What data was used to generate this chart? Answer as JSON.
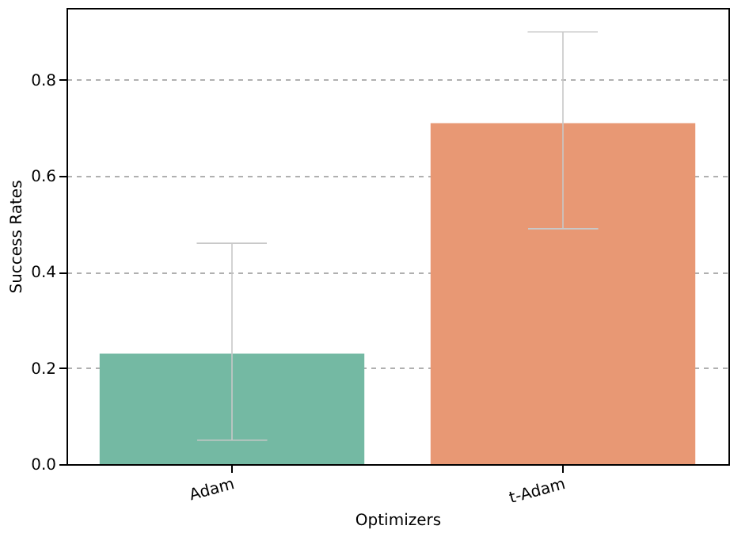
{
  "chart_data": {
    "type": "bar",
    "xlabel": "Optimizers",
    "ylabel": "Success Rates",
    "categories": [
      "Adam",
      "t-Adam"
    ],
    "values": [
      0.23,
      0.71
    ],
    "colors": [
      "#74b9a3",
      "#e89874"
    ],
    "errors": [
      [
        0.05,
        0.46
      ],
      [
        0.49,
        0.9
      ]
    ],
    "ylim": [
      0,
      0.95
    ],
    "yticks": [
      {
        "value": 0,
        "label": "0.0"
      },
      0.2,
      0.4,
      0.6,
      0.8
    ],
    "grid": "y"
  }
}
